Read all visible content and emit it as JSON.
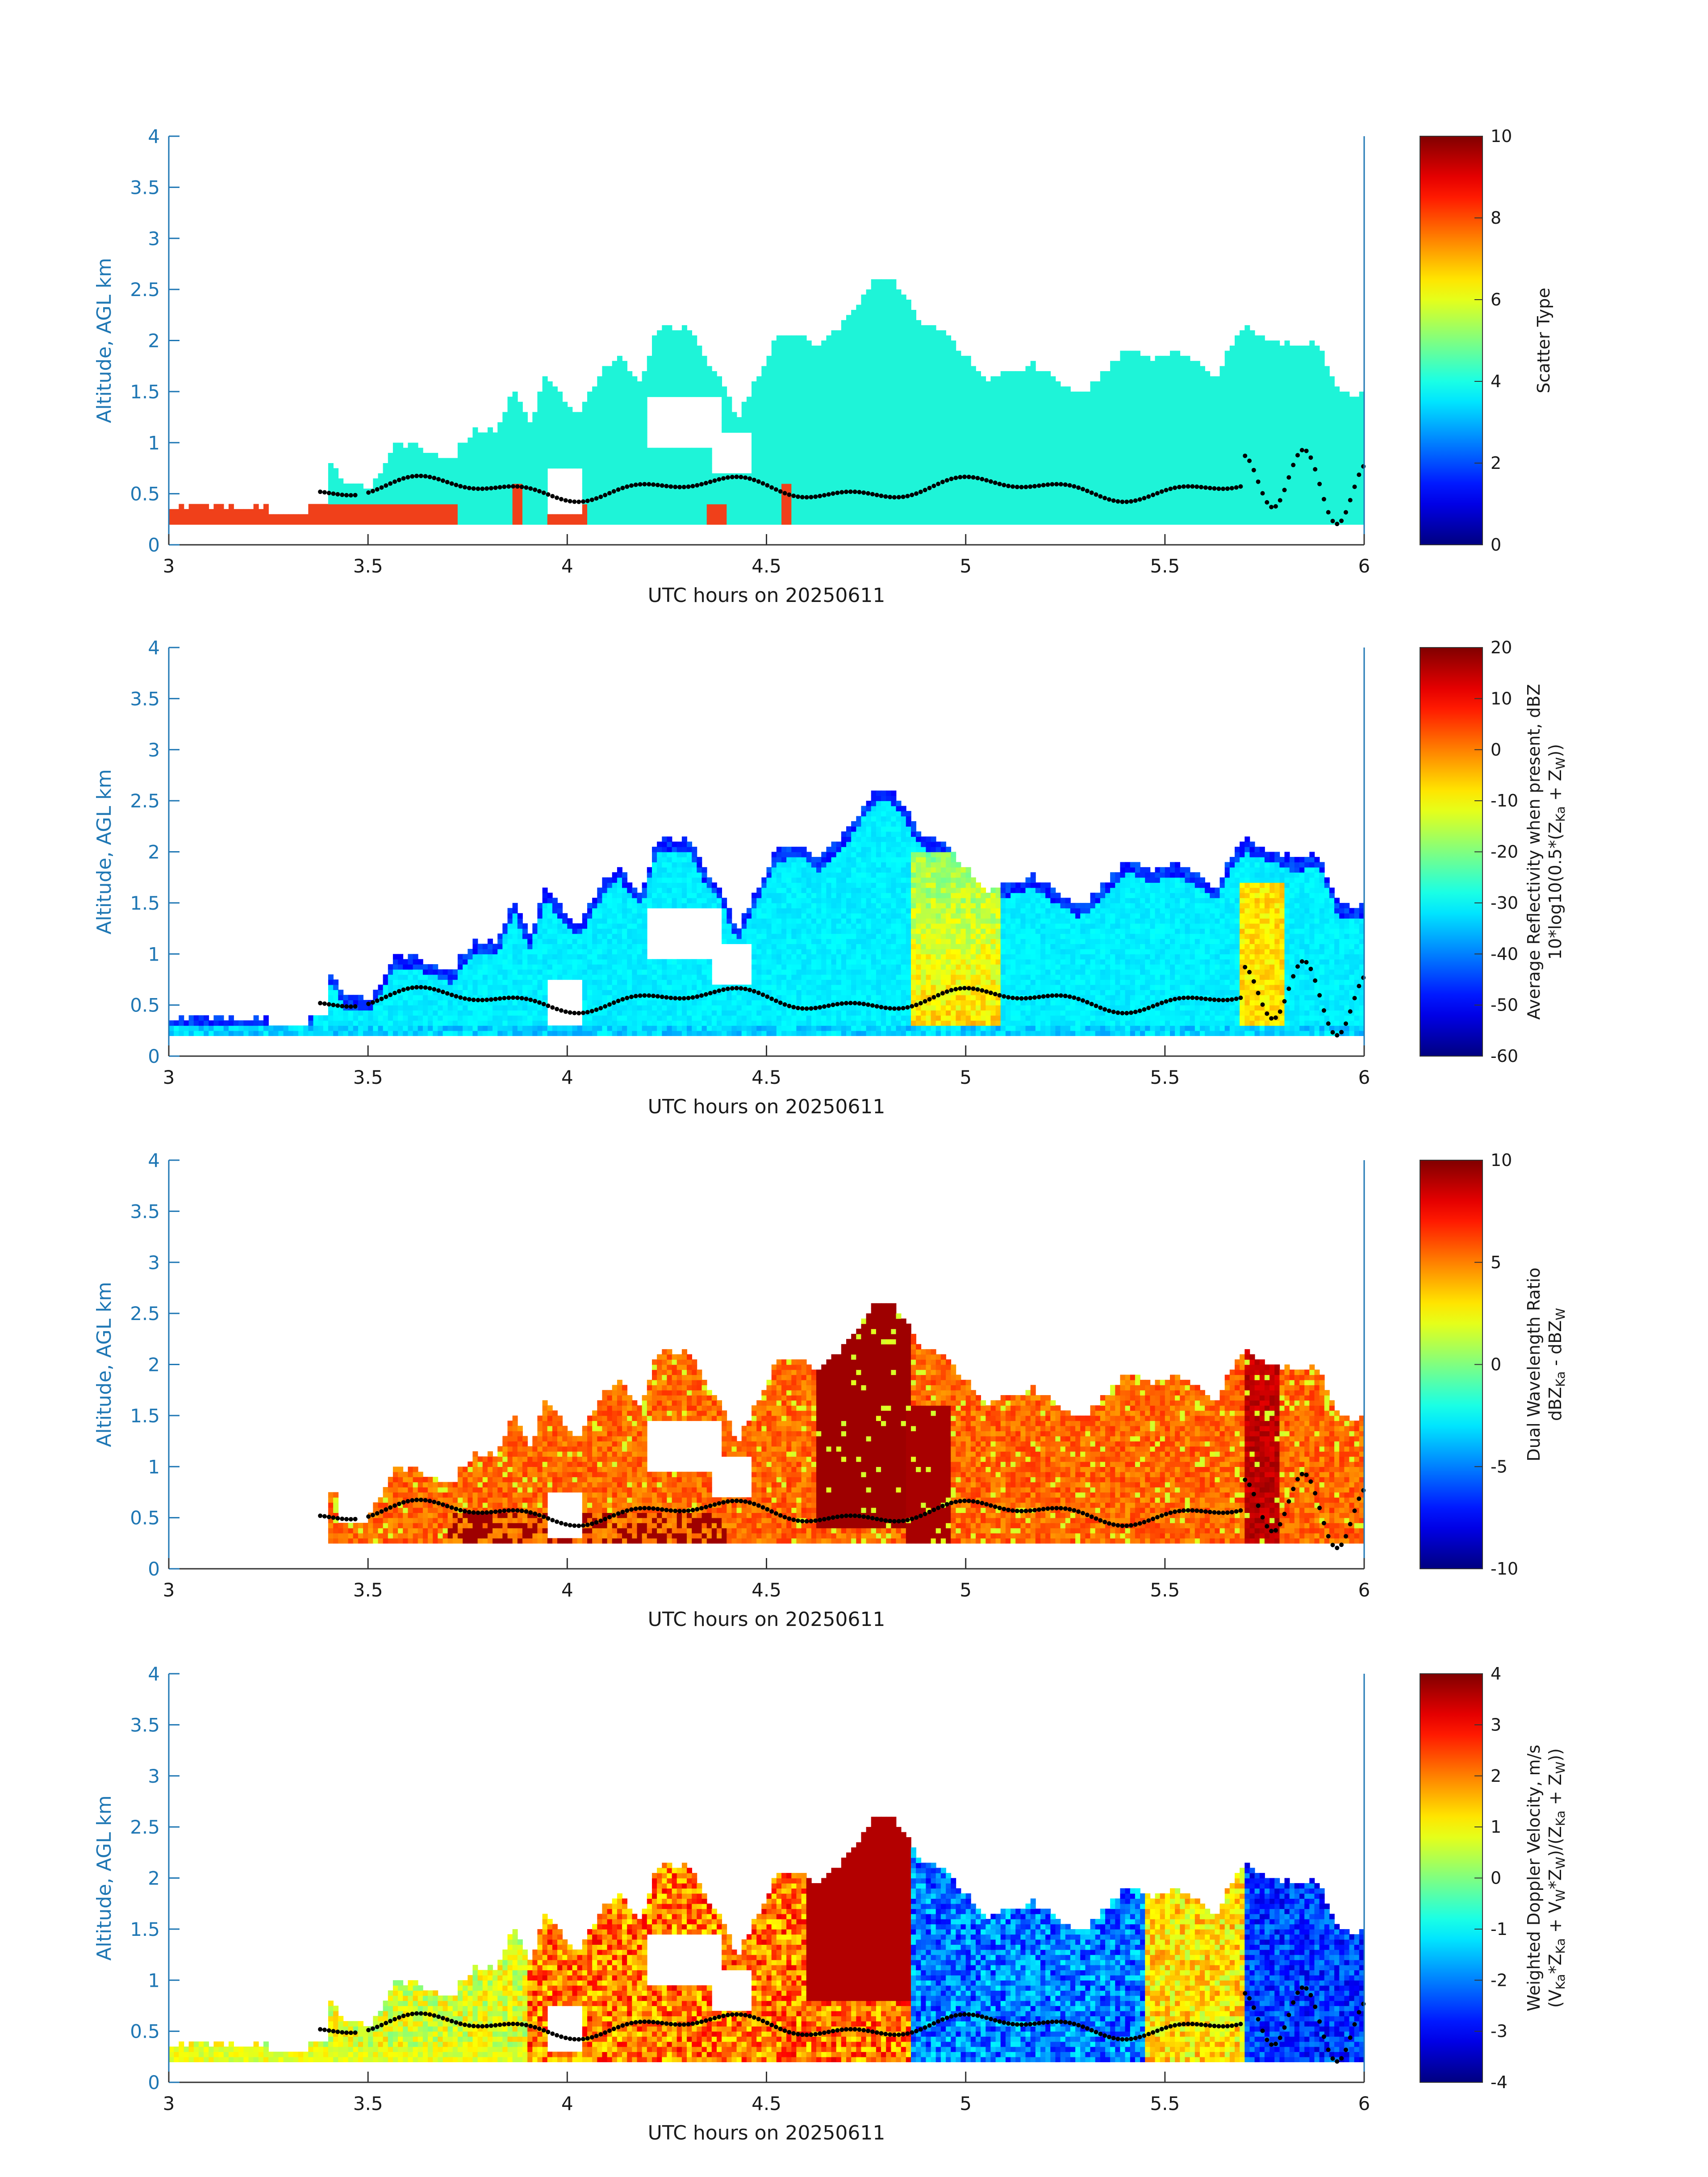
{
  "chart_data": [
    {
      "type": "heatmap",
      "xlabel": "UTC hours on 20250611",
      "ylabel": "Altitude, AGL km",
      "xlim": [
        3,
        6
      ],
      "ylim": [
        0,
        4
      ],
      "xticks": [
        "3",
        "3.5",
        "4",
        "4.5",
        "5",
        "5.5",
        "6"
      ],
      "yticks": [
        "0",
        "0.5",
        "1",
        "1.5",
        "2",
        "2.5",
        "3",
        "3.5",
        "4"
      ],
      "colorbar": {
        "label_lines": [
          "Scatter Type"
        ],
        "range": [
          0,
          10
        ],
        "ticks": [
          "0",
          "2",
          "4",
          "6",
          "8",
          "10"
        ]
      },
      "field": "scatter_type",
      "regions": [
        {
          "value": 3.8,
          "x": [
            3.4,
            5.95
          ],
          "ybase": 0.2
        },
        {
          "value": 8.5,
          "x": [
            3.0,
            3.72
          ],
          "ybase": 0.2
        }
      ],
      "cloud_base_km": "dotted line near 0.45-0.7 km"
    },
    {
      "type": "heatmap",
      "xlabel": "UTC hours on 20250611",
      "ylabel": "Altitude, AGL km",
      "xlim": [
        3,
        6
      ],
      "ylim": [
        0,
        4
      ],
      "xticks": [
        "3",
        "3.5",
        "4",
        "4.5",
        "5",
        "5.5",
        "6"
      ],
      "yticks": [
        "0",
        "0.5",
        "1",
        "1.5",
        "2",
        "2.5",
        "3",
        "3.5",
        "4"
      ],
      "colorbar": {
        "label_lines": [
          "Average Reflectivity when present, dBZ",
          "10*log10(0.5*(Z",
          "Ka",
          " + Z",
          "W",
          "))"
        ],
        "range": [
          -60,
          20
        ],
        "ticks": [
          "-60",
          "-50",
          "-40",
          "-30",
          "-20",
          "-10",
          "0",
          "10",
          "20"
        ]
      },
      "field": "reflectivity"
    },
    {
      "type": "heatmap",
      "xlabel": "UTC hours on 20250611",
      "ylabel": "Altitude, AGL km",
      "xlim": [
        3,
        6
      ],
      "ylim": [
        0,
        4
      ],
      "xticks": [
        "3",
        "3.5",
        "4",
        "4.5",
        "5",
        "5.5",
        "6"
      ],
      "yticks": [
        "0",
        "0.5",
        "1",
        "1.5",
        "2",
        "2.5",
        "3",
        "3.5",
        "4"
      ],
      "colorbar": {
        "label_lines": [
          "Dual Wavelength Ratio",
          "dBZ",
          "Ka",
          " - dBZ",
          "W"
        ],
        "range": [
          -10,
          10
        ],
        "ticks": [
          "-10",
          "-5",
          "0",
          "5",
          "10"
        ]
      },
      "field": "dwr"
    },
    {
      "type": "heatmap",
      "xlabel": "UTC hours on 20250611",
      "ylabel": "Altitude, AGL km",
      "xlim": [
        3,
        6
      ],
      "ylim": [
        0,
        4
      ],
      "xticks": [
        "3",
        "3.5",
        "4",
        "4.5",
        "5",
        "5.5",
        "6"
      ],
      "yticks": [
        "0",
        "0.5",
        "1",
        "1.5",
        "2",
        "2.5",
        "3",
        "3.5",
        "4"
      ],
      "colorbar": {
        "label_lines": [
          "Weighted Doppler Velocity, m/s",
          "(V",
          "Ka",
          "*Z",
          "Ka",
          " + V",
          "W",
          "*Z",
          "W",
          ")/(Z",
          "Ka",
          " + Z",
          "W",
          "))"
        ],
        "range": [
          -4,
          4
        ],
        "ticks": [
          "-4",
          "-3",
          "-2",
          "-1",
          "0",
          "1",
          "2",
          "3",
          "4"
        ]
      },
      "field": "doppler_velocity"
    }
  ],
  "colors": {
    "axis_blue": "#1f77b4",
    "cloud_base_dots": "#000000",
    "scatter_cyan": "#1ef4d8",
    "scatter_red": "#f0401a"
  }
}
